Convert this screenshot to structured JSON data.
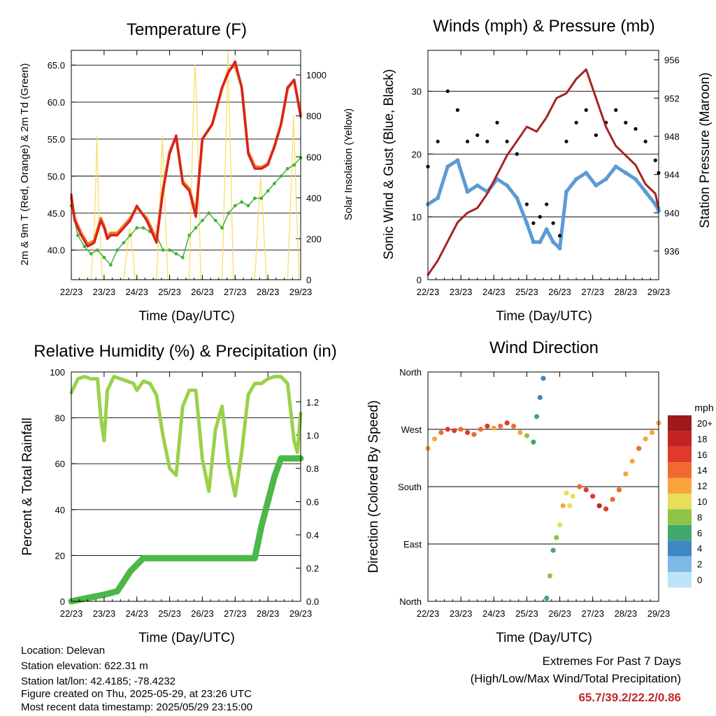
{
  "x_axis": {
    "ticks": [
      "22/23",
      "23/23",
      "24/23",
      "25/23",
      "26/23",
      "27/23",
      "28/23",
      "29/23"
    ],
    "label": "Time (Day/UTC)"
  },
  "colors": {
    "temp_2m": "#d62020",
    "temp_9m": "#f07b1f",
    "dewpoint": "#44b03a",
    "solar": "#f7dc5a",
    "sonic_wind": "#5b9bd5",
    "gust": "#000000",
    "pressure": "#a52422",
    "rh": "#9ad14a",
    "precip": "#4cb848",
    "extremes_value": "#c0282a"
  },
  "chart_data": [
    {
      "id": "temperature",
      "type": "line",
      "title": "Temperature (F)",
      "xlabel": "Time (Day/UTC)",
      "ylabel": "2m & 9m T (Red, Orange) & 2m Td (Green)",
      "ylabel_right": "Solar Insolation (Yellow)",
      "ylim": [
        36,
        67
      ],
      "yticks": [
        "40.0",
        "45.0",
        "50.0",
        "55.0",
        "60.0",
        "65.0"
      ],
      "ylim_right": [
        0,
        1120
      ],
      "yticks_right": [
        "0",
        "200",
        "400",
        "600",
        "800",
        "1000"
      ],
      "grid": "horizontal",
      "series": [
        {
          "key": "temp_2m",
          "x": [
            0,
            0.1,
            0.3,
            0.5,
            0.7,
            0.9,
            1,
            1.1,
            1.2,
            1.4,
            1.6,
            1.8,
            2,
            2.3,
            2.6,
            2.8,
            3,
            3.2,
            3.4,
            3.6,
            3.8,
            4,
            4.3,
            4.6,
            4.8,
            5,
            5.2,
            5.4,
            5.6,
            5.8,
            6,
            6.2,
            6.4,
            6.6,
            6.8,
            7
          ],
          "y": [
            47.5,
            44,
            42,
            40.5,
            41,
            44,
            43,
            41.5,
            42,
            42,
            43,
            44,
            46,
            44,
            41,
            48,
            53,
            55.5,
            49,
            48,
            44.5,
            55,
            57,
            62,
            64,
            65.5,
            62,
            53,
            51,
            51,
            51.5,
            54,
            57,
            62,
            63,
            58
          ]
        },
        {
          "key": "temp_9m",
          "x": [
            0,
            0.1,
            0.3,
            0.5,
            0.7,
            0.9,
            1,
            1.1,
            1.2,
            1.4,
            1.6,
            1.8,
            2,
            2.3,
            2.6,
            2.8,
            3,
            3.2,
            3.4,
            3.6,
            3.8,
            4,
            4.3,
            4.6,
            4.8,
            5,
            5.2,
            5.4,
            5.6,
            5.8,
            6,
            6.2,
            6.4,
            6.6,
            6.8,
            7
          ],
          "y": [
            47,
            44.3,
            42.3,
            40.8,
            41.3,
            44.3,
            43.3,
            41.8,
            42.3,
            42.3,
            43.3,
            44.3,
            45.8,
            44.3,
            41.5,
            48.3,
            53.3,
            55.3,
            49.3,
            48.3,
            45,
            55,
            57,
            61.8,
            64.3,
            65,
            62,
            53.3,
            51.3,
            51.2,
            51.7,
            54,
            57,
            61.8,
            63,
            58.3
          ]
        },
        {
          "key": "dewpoint",
          "x": [
            0,
            0.2,
            0.4,
            0.6,
            0.8,
            1,
            1.2,
            1.4,
            1.6,
            1.8,
            2,
            2.2,
            2.4,
            2.6,
            2.8,
            3,
            3.2,
            3.4,
            3.6,
            3.8,
            4,
            4.2,
            4.4,
            4.6,
            4.8,
            5,
            5.2,
            5.4,
            5.6,
            5.8,
            6,
            6.2,
            6.4,
            6.6,
            6.8,
            7
          ],
          "y": [
            46,
            42,
            40.5,
            39.5,
            40,
            39,
            38,
            40,
            41,
            42,
            43,
            43,
            42.5,
            42,
            40,
            40,
            39.5,
            39,
            42,
            43,
            44,
            45,
            44,
            43,
            45,
            46,
            46.5,
            46,
            47,
            47,
            48,
            49,
            50,
            51,
            51.5,
            52.5
          ]
        },
        {
          "key": "solar",
          "x": [
            0,
            0.6,
            0.72,
            0.78,
            0.84,
            0.95,
            1.6,
            1.7,
            1.78,
            1.86,
            1.95,
            2.6,
            2.72,
            2.78,
            2.84,
            2.95,
            3.6,
            3.72,
            3.78,
            3.84,
            3.95,
            4.6,
            4.72,
            4.78,
            4.84,
            4.95,
            5.6,
            5.72,
            5.78,
            5.84,
            5.95,
            6.6,
            6.72,
            6.78,
            6.84,
            6.95,
            7
          ],
          "y": [
            0,
            0,
            300,
            700,
            300,
            0,
            0,
            150,
            250,
            150,
            0,
            0,
            450,
            700,
            450,
            0,
            0,
            800,
            1050,
            800,
            0,
            0,
            700,
            1120,
            700,
            0,
            0,
            350,
            500,
            350,
            0,
            0,
            500,
            800,
            500,
            0,
            0
          ]
        }
      ]
    },
    {
      "id": "winds",
      "type": "scatter",
      "title": "Winds (mph) & Pressure (mb)",
      "xlabel": "Time (Day/UTC)",
      "ylabel": "Sonic Wind & Gust (Blue, Black)",
      "ylabel_right": "Station Pressure (Maroon)",
      "ylim": [
        0,
        36.5
      ],
      "yticks": [
        "0",
        "10",
        "20",
        "30"
      ],
      "ylim_right": [
        933,
        957
      ],
      "yticks_right": [
        "936",
        "940",
        "944",
        "948",
        "952",
        "956"
      ],
      "grid": "horizontal",
      "series": [
        {
          "key": "sonic_wind",
          "x": [
            0,
            0.3,
            0.6,
            0.9,
            1.2,
            1.5,
            1.8,
            2.1,
            2.4,
            2.7,
            3,
            3.2,
            3.4,
            3.6,
            3.8,
            4,
            4.2,
            4.5,
            4.8,
            5.1,
            5.4,
            5.7,
            6,
            6.3,
            6.6,
            6.9,
            7
          ],
          "y": [
            12,
            13,
            18,
            19,
            14,
            15,
            14,
            16,
            15,
            13,
            9,
            6,
            6,
            8,
            6,
            5,
            14,
            16,
            17,
            15,
            16,
            18,
            17,
            16,
            14,
            12,
            11
          ]
        },
        {
          "key": "gust",
          "x": [
            0,
            0.3,
            0.6,
            0.9,
            1.2,
            1.5,
            1.8,
            2.1,
            2.4,
            2.7,
            3,
            3.2,
            3.4,
            3.6,
            3.8,
            4,
            4.2,
            4.5,
            4.8,
            5.1,
            5.4,
            5.7,
            6,
            6.3,
            6.6,
            6.9,
            7
          ],
          "y": [
            18,
            22,
            30,
            27,
            22,
            23,
            22,
            25,
            22,
            20,
            12,
            9,
            10,
            12,
            9,
            7,
            22,
            25,
            27,
            23,
            25,
            27,
            25,
            24,
            22,
            19,
            17
          ]
        },
        {
          "key": "pressure",
          "x": [
            0,
            0.3,
            0.6,
            0.9,
            1.2,
            1.5,
            1.8,
            2.1,
            2.4,
            2.7,
            3,
            3.3,
            3.6,
            3.9,
            4.2,
            4.5,
            4.8,
            5.1,
            5.4,
            5.7,
            6,
            6.3,
            6.6,
            6.9,
            7
          ],
          "y": [
            933.5,
            935,
            937,
            939,
            940,
            940.5,
            942,
            944,
            946,
            947.5,
            949,
            948.5,
            950,
            952,
            952.5,
            954,
            955,
            952,
            949,
            947,
            946,
            945,
            943,
            942,
            940.5
          ]
        }
      ]
    },
    {
      "id": "humidity",
      "type": "line",
      "title": "Relative Humidity (%) & Precipitation (in)",
      "xlabel": "Time (Day/UTC)",
      "ylabel": "Percent & Total Rainfall",
      "ylim": [
        0,
        100
      ],
      "yticks": [
        "0",
        "20",
        "40",
        "60",
        "80",
        "100"
      ],
      "ylim_right": [
        0,
        1.38
      ],
      "yticks_right": [
        "0.0",
        "0.2",
        "0.4",
        "0.6",
        "0.8",
        "1.0",
        "1.2"
      ],
      "grid": "horizontal",
      "series": [
        {
          "key": "rh",
          "x": [
            0,
            0.2,
            0.4,
            0.6,
            0.8,
            0.9,
            1,
            1.1,
            1.3,
            1.5,
            1.7,
            1.9,
            2,
            2.2,
            2.4,
            2.6,
            2.8,
            2.9,
            3,
            3.2,
            3.4,
            3.6,
            3.8,
            4,
            4.2,
            4.4,
            4.6,
            4.8,
            5,
            5.2,
            5.4,
            5.6,
            5.8,
            6,
            6.2,
            6.4,
            6.6,
            6.8,
            6.9,
            7
          ],
          "y": [
            91,
            97,
            98,
            97,
            97,
            80,
            70,
            92,
            98,
            97,
            96,
            95,
            92,
            96,
            95,
            90,
            72,
            65,
            58,
            55,
            85,
            92,
            92,
            62,
            48,
            75,
            85,
            60,
            46,
            65,
            90,
            95,
            95,
            97,
            98,
            98,
            95,
            70,
            65,
            82
          ]
        },
        {
          "key": "precip",
          "x": [
            0,
            0.5,
            1,
            1.2,
            1.4,
            1.6,
            1.8,
            2,
            2.2,
            2.5,
            3,
            3.5,
            4,
            4.5,
            5,
            5.3,
            5.6,
            5.8,
            6,
            6.2,
            6.4,
            6.6,
            7
          ],
          "y": [
            0,
            0.02,
            0.04,
            0.05,
            0.06,
            0.12,
            0.18,
            0.22,
            0.26,
            0.26,
            0.26,
            0.26,
            0.26,
            0.26,
            0.26,
            0.26,
            0.26,
            0.45,
            0.6,
            0.75,
            0.86,
            0.86,
            0.86
          ]
        }
      ]
    },
    {
      "id": "direction",
      "type": "scatter",
      "title": "Wind Direction",
      "xlabel": "Time (Day/UTC)",
      "ylabel": "Direction (Colored By Speed)",
      "ylim": [
        0,
        360
      ],
      "yticks": [
        "North",
        "East",
        "South",
        "West",
        "North"
      ],
      "grid": "horizontal",
      "legend": {
        "title": "mph",
        "labels": [
          "20+",
          "18",
          "16",
          "14",
          "12",
          "10",
          "8",
          "6",
          "4",
          "2",
          "0"
        ],
        "colors": [
          "#9e1a1a",
          "#c42323",
          "#e03a2a",
          "#f06a30",
          "#f8a53e",
          "#e9de57",
          "#8ec34a",
          "#43a770",
          "#3f86c4",
          "#7eb8e4",
          "#bfe3f7"
        ],
        "placement": "right"
      },
      "series": [
        {
          "key": "direction",
          "x": [
            0,
            0.2,
            0.4,
            0.6,
            0.8,
            1,
            1.2,
            1.4,
            1.6,
            1.8,
            2,
            2.2,
            2.4,
            2.6,
            2.8,
            3,
            3.2,
            3.3,
            3.4,
            3.5,
            3.6,
            3.7,
            3.8,
            3.9,
            4,
            4.1,
            4.2,
            4.3,
            4.4,
            4.6,
            4.8,
            5,
            5.2,
            5.4,
            5.6,
            5.8,
            6,
            6.2,
            6.4,
            6.6,
            6.8,
            7
          ],
          "y": [
            240,
            255,
            265,
            270,
            268,
            270,
            265,
            262,
            270,
            275,
            272,
            275,
            280,
            275,
            265,
            260,
            250,
            290,
            320,
            350,
            5,
            40,
            80,
            100,
            120,
            150,
            170,
            150,
            165,
            180,
            175,
            165,
            150,
            145,
            160,
            175,
            200,
            220,
            240,
            255,
            265,
            280
          ],
          "speed": [
            12,
            13,
            15,
            17,
            16,
            15,
            17,
            14,
            15,
            16,
            13,
            14,
            16,
            15,
            12,
            9,
            6,
            6,
            5,
            4,
            6,
            8,
            6,
            8,
            10,
            12,
            10,
            11,
            11,
            15,
            16,
            17,
            18,
            16,
            15,
            14,
            12,
            13,
            14,
            12,
            12,
            13
          ]
        }
      ]
    }
  ],
  "info": {
    "location": "Location: Delevan",
    "elevation": "Station elevation: 622.31 m",
    "latlon": "Station lat/lon: 42.4185; -78.4232",
    "created": "Figure created on Thu, 2025-05-29, at 23:26 UTC",
    "recent": "Most recent data timestamp: 2025/05/29 23:15:00"
  },
  "extremes": {
    "line1": "Extremes For Past 7 Days",
    "line2": "(High/Low/Max Wind/Total Precipitation)",
    "values": "65.7/39.2/22.2/0.86"
  }
}
